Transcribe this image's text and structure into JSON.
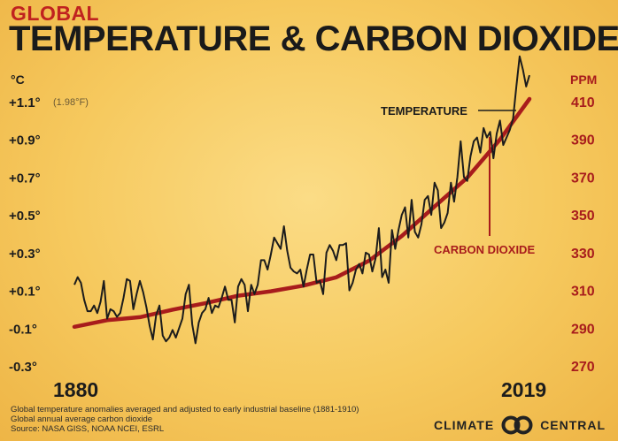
{
  "header": {
    "kicker": "GLOBAL",
    "title": "TEMPERATURE & CARBON DIOXIDE"
  },
  "chart_data": {
    "type": "line",
    "left_axis": {
      "unit": "°C",
      "ticks": [
        "+1.1°",
        "+0.9°",
        "+0.7°",
        "+0.5°",
        "+0.3°",
        "+0.1°",
        "-0.1°",
        "-0.3°"
      ],
      "fahrenheit_note": "(1.98°F)",
      "range": [
        -0.3,
        1.1
      ]
    },
    "right_axis": {
      "unit": "PPM",
      "ticks": [
        "410",
        "390",
        "370",
        "350",
        "330",
        "310",
        "290",
        "270"
      ],
      "range": [
        270,
        410
      ]
    },
    "x_axis": {
      "start_label": "1880",
      "end_label": "2019",
      "range": [
        1880,
        2019
      ]
    },
    "series": [
      {
        "name": "TEMPERATURE",
        "axis": "left",
        "color": "#1c1c1c",
        "years": [
          1880,
          1881,
          1882,
          1883,
          1884,
          1885,
          1886,
          1887,
          1888,
          1889,
          1890,
          1891,
          1892,
          1893,
          1894,
          1895,
          1896,
          1897,
          1898,
          1899,
          1900,
          1901,
          1902,
          1903,
          1904,
          1905,
          1906,
          1907,
          1908,
          1909,
          1910,
          1911,
          1912,
          1913,
          1914,
          1915,
          1916,
          1917,
          1918,
          1919,
          1920,
          1921,
          1922,
          1923,
          1924,
          1925,
          1926,
          1927,
          1928,
          1929,
          1930,
          1931,
          1932,
          1933,
          1934,
          1935,
          1936,
          1937,
          1938,
          1939,
          1940,
          1941,
          1942,
          1943,
          1944,
          1945,
          1946,
          1947,
          1948,
          1949,
          1950,
          1951,
          1952,
          1953,
          1954,
          1955,
          1956,
          1957,
          1958,
          1959,
          1960,
          1961,
          1962,
          1963,
          1964,
          1965,
          1966,
          1967,
          1968,
          1969,
          1970,
          1971,
          1972,
          1973,
          1974,
          1975,
          1976,
          1977,
          1978,
          1979,
          1980,
          1981,
          1982,
          1983,
          1984,
          1985,
          1986,
          1987,
          1988,
          1989,
          1990,
          1991,
          1992,
          1993,
          1994,
          1995,
          1996,
          1997,
          1998,
          1999,
          2000,
          2001,
          2002,
          2003,
          2004,
          2005,
          2006,
          2007,
          2008,
          2009,
          2010,
          2011,
          2012,
          2013,
          2014,
          2015,
          2016,
          2017,
          2018,
          2019
        ],
        "values": [
          0.13,
          0.17,
          0.14,
          0.05,
          -0.01,
          -0.01,
          0.02,
          -0.02,
          0.04,
          0.15,
          -0.05,
          0.0,
          -0.01,
          -0.04,
          -0.02,
          0.06,
          0.16,
          0.15,
          0.0,
          0.08,
          0.15,
          0.09,
          0.01,
          -0.09,
          -0.16,
          -0.03,
          0.02,
          -0.14,
          -0.17,
          -0.15,
          -0.11,
          -0.15,
          -0.1,
          -0.05,
          0.08,
          0.13,
          -0.08,
          -0.18,
          -0.07,
          -0.02,
          0.0,
          0.06,
          -0.02,
          0.02,
          0.01,
          0.06,
          0.12,
          0.05,
          0.05,
          -0.07,
          0.12,
          0.16,
          0.13,
          -0.01,
          0.13,
          0.08,
          0.13,
          0.26,
          0.26,
          0.21,
          0.29,
          0.38,
          0.35,
          0.32,
          0.44,
          0.31,
          0.22,
          0.2,
          0.19,
          0.21,
          0.12,
          0.21,
          0.29,
          0.29,
          0.14,
          0.15,
          0.08,
          0.3,
          0.34,
          0.31,
          0.26,
          0.34,
          0.34,
          0.35,
          0.1,
          0.14,
          0.21,
          0.24,
          0.19,
          0.3,
          0.29,
          0.2,
          0.27,
          0.43,
          0.17,
          0.21,
          0.14,
          0.42,
          0.32,
          0.42,
          0.5,
          0.54,
          0.38,
          0.58,
          0.41,
          0.38,
          0.45,
          0.58,
          0.6,
          0.5,
          0.67,
          0.63,
          0.43,
          0.46,
          0.51,
          0.67,
          0.57,
          0.7,
          0.89,
          0.7,
          0.68,
          0.81,
          0.89,
          0.91,
          0.83,
          0.96,
          0.91,
          0.94,
          0.8,
          0.93,
          1.0,
          0.87,
          0.91,
          0.95,
          1.01,
          1.18,
          1.34,
          1.27,
          1.18,
          1.24
        ]
      },
      {
        "name": "CARBON DIOXIDE",
        "axis": "right",
        "color": "#a81c1c",
        "years": [
          1880,
          1890,
          1900,
          1910,
          1920,
          1930,
          1940,
          1950,
          1960,
          1970,
          1980,
          1990,
          2000,
          2010,
          2019
        ],
        "values": [
          290.7,
          294.2,
          295.8,
          299.8,
          303.2,
          307.2,
          309.5,
          312.5,
          316.9,
          325.7,
          338.8,
          354.4,
          369.7,
          389.9,
          411.4
        ]
      }
    ]
  },
  "footnotes": [
    "Global temperature anomalies averaged and adjusted to early industrial baseline (1881-1910)",
    "Global annual average carbon dioxide",
    "Source: NASA GISS, NOAA NCEI, ESRL"
  ],
  "brand": {
    "left": "CLIMATE",
    "right": "CENTRAL"
  },
  "colors": {
    "ink": "#1c1c1c",
    "red": "#a81c1c",
    "title_red": "#c0221f",
    "background": "#f6c95e"
  }
}
